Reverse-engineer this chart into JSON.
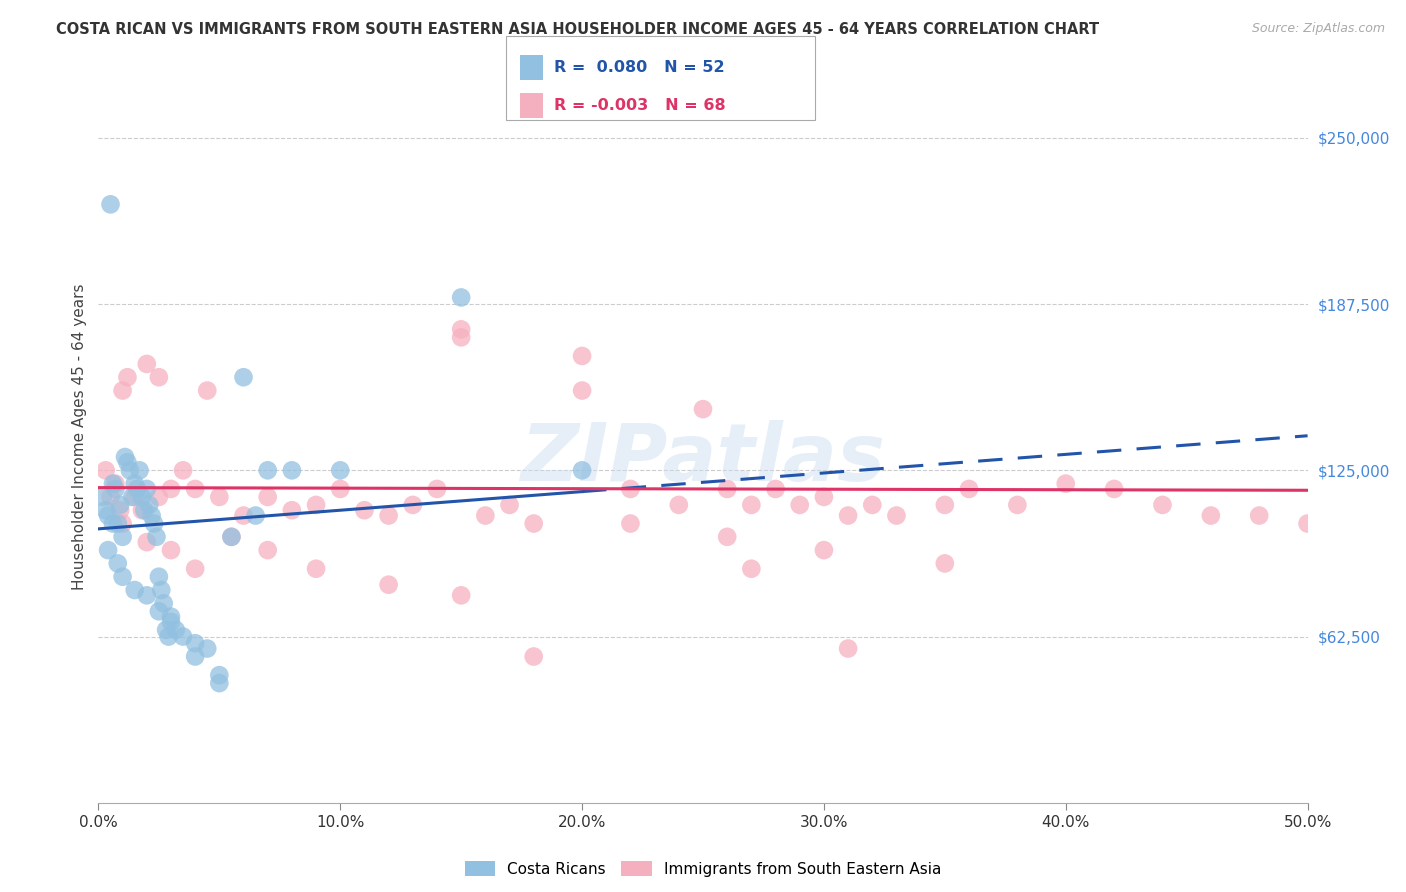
{
  "title": "COSTA RICAN VS IMMIGRANTS FROM SOUTH EASTERN ASIA HOUSEHOLDER INCOME AGES 45 - 64 YEARS CORRELATION CHART",
  "source": "Source: ZipAtlas.com",
  "ylabel": "Householder Income Ages 45 - 64 years",
  "xlabel_ticks": [
    "0.0%",
    "10.0%",
    "20.0%",
    "30.0%",
    "40.0%",
    "50.0%"
  ],
  "xlabel_vals": [
    0.0,
    10.0,
    20.0,
    30.0,
    40.0,
    50.0
  ],
  "ylim": [
    0,
    275000
  ],
  "xlim": [
    -0.5,
    52.0
  ],
  "yticks": [
    62500,
    125000,
    187500,
    250000
  ],
  "ytick_labels": [
    "$62,500",
    "$125,000",
    "$187,500",
    "$250,000"
  ],
  "background_color": "#ffffff",
  "watermark": "ZIPatlas",
  "blue_color": "#92c0e0",
  "pink_color": "#f5b0c0",
  "blue_line_color": "#2255aa",
  "pink_line_color": "#dd3366",
  "blue_line_intercept": 103000,
  "blue_line_slope": 700,
  "pink_line_intercept": 118500,
  "pink_line_slope": -20,
  "legend_blue_R": "0.080",
  "legend_blue_N": "52",
  "legend_pink_R": "-0.003",
  "legend_pink_N": "68",
  "legend_label_blue": "Costa Ricans",
  "legend_label_pink": "Immigrants from South Eastern Asia",
  "grid_color": "#cccccc",
  "blue_x": [
    0.2,
    0.3,
    0.4,
    0.5,
    0.6,
    0.7,
    0.8,
    0.9,
    1.0,
    1.1,
    1.2,
    1.3,
    1.4,
    1.5,
    1.6,
    1.7,
    1.8,
    1.9,
    2.0,
    2.1,
    2.2,
    2.3,
    2.4,
    2.5,
    2.6,
    2.7,
    2.8,
    2.9,
    3.0,
    3.2,
    3.5,
    4.0,
    4.5,
    5.0,
    5.5,
    6.0,
    6.5,
    7.0,
    0.4,
    0.6,
    0.8,
    1.0,
    1.5,
    2.0,
    2.5,
    3.0,
    4.0,
    5.0,
    8.0,
    10.0,
    15.0,
    20.0
  ],
  "blue_y": [
    115000,
    110000,
    108000,
    225000,
    120000,
    118000,
    105000,
    112000,
    100000,
    130000,
    128000,
    125000,
    115000,
    120000,
    118000,
    125000,
    115000,
    110000,
    118000,
    112000,
    108000,
    105000,
    100000,
    85000,
    80000,
    75000,
    65000,
    62500,
    70000,
    65000,
    62500,
    60000,
    58000,
    45000,
    100000,
    160000,
    108000,
    125000,
    95000,
    105000,
    90000,
    85000,
    80000,
    78000,
    72000,
    68000,
    55000,
    48000,
    125000,
    125000,
    190000,
    125000
  ],
  "pink_x": [
    0.3,
    0.5,
    0.7,
    0.9,
    1.0,
    1.2,
    1.5,
    1.8,
    2.0,
    2.5,
    3.0,
    3.5,
    4.0,
    5.0,
    6.0,
    7.0,
    8.0,
    9.0,
    10.0,
    11.0,
    12.0,
    13.0,
    14.0,
    15.0,
    16.0,
    17.0,
    18.0,
    20.0,
    22.0,
    24.0,
    25.0,
    26.0,
    27.0,
    28.0,
    29.0,
    30.0,
    31.0,
    32.0,
    33.0,
    35.0,
    36.0,
    38.0,
    40.0,
    42.0,
    44.0,
    46.0,
    48.0,
    50.0,
    1.0,
    2.0,
    3.0,
    4.0,
    5.5,
    7.0,
    9.0,
    12.0,
    15.0,
    18.0,
    22.0,
    26.0,
    30.0,
    35.0,
    2.5,
    4.5,
    15.0,
    20.0,
    27.0,
    31.0
  ],
  "pink_y": [
    125000,
    115000,
    120000,
    110000,
    155000,
    160000,
    115000,
    110000,
    165000,
    115000,
    118000,
    125000,
    118000,
    115000,
    108000,
    115000,
    110000,
    112000,
    118000,
    110000,
    108000,
    112000,
    118000,
    175000,
    108000,
    112000,
    105000,
    155000,
    118000,
    112000,
    148000,
    118000,
    112000,
    118000,
    112000,
    115000,
    108000,
    112000,
    108000,
    112000,
    118000,
    112000,
    120000,
    118000,
    112000,
    108000,
    108000,
    105000,
    105000,
    98000,
    95000,
    88000,
    100000,
    95000,
    88000,
    82000,
    78000,
    55000,
    105000,
    100000,
    95000,
    90000,
    160000,
    155000,
    178000,
    168000,
    88000,
    58000
  ]
}
